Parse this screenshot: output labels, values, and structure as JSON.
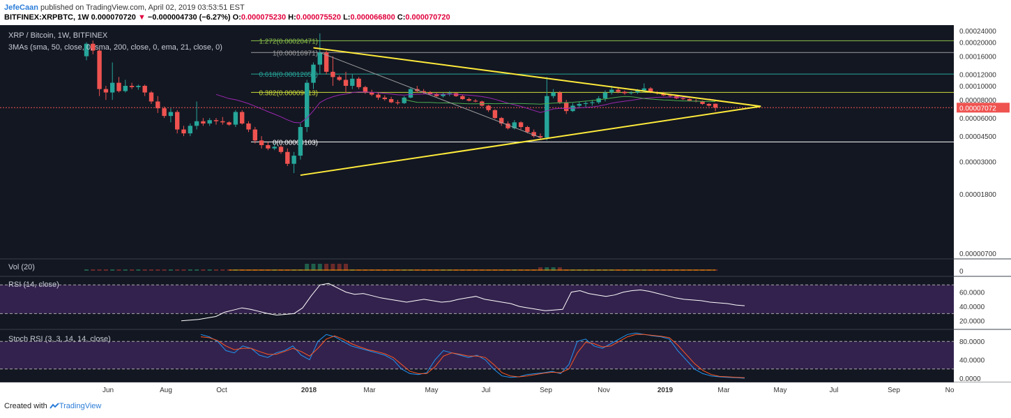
{
  "header": {
    "author": "JefeCaan",
    "published_text": " published on TradingView.com, April 02, 2019 03:53:51 EST",
    "symbol_line": "BITFINEX:XRPBTC, 1W 0.000070720",
    "change_arrow": "▼",
    "change_text": "−0.000004730 (−6.27%)",
    "o_label": "O:",
    "o_value": "0.000075230",
    "h_label": "H:",
    "h_value": "0.000075520",
    "l_label": "L:",
    "l_value": "0.000066800",
    "c_label": "C:",
    "c_value": "0.000070720"
  },
  "footer": {
    "created_with": "Created with ",
    "brand": "TradingView"
  },
  "colors": {
    "up": "#26a69a",
    "down": "#ef5350",
    "bg": "#131722",
    "trend": "#ffeb3b",
    "ma_green": "#4caf50",
    "ma_purple": "#9c27b0",
    "rsi_band": "#4a2a6b"
  },
  "chart_data": [
    {
      "type": "candlestick",
      "title": "XRP / Bitcoin, 1W, BITFINEX",
      "indicator_label": "3MAs (sma, 50, close, 0, sma, 200, close, 0, ema, 21, close, 0)",
      "x_ticks": [
        "Jun",
        "Aug",
        "Oct",
        "2018",
        "Mar",
        "May",
        "Jul",
        "Sep",
        "Nov",
        "2019",
        "Mar",
        "May",
        "Jul",
        "Sep",
        "No"
      ],
      "y_ticks": [
        "0.00024000",
        "0.00020000",
        "0.00016000",
        "0.00012000",
        "0.00010000",
        "0.00008000",
        "0.00007072",
        "0.00006000",
        "0.00004500",
        "0.00003000",
        "0.00001800",
        "0.00000700"
      ],
      "current_price_label": "0.00007072",
      "fib_levels": [
        {
          "label": "1.272(0.00020471)",
          "value": 0.00020471,
          "color": "#8bc34a"
        },
        {
          "label": "1(0.00016971)",
          "value": 0.00016971,
          "color": "#9e9e9e"
        },
        {
          "label": "0.618(0.00012051)",
          "value": 0.00012051,
          "color": "#26a69a"
        },
        {
          "label": "0.382(0.00009013)",
          "value": 9.013e-05,
          "color": "#cddc39"
        },
        {
          "label": "0(0.00004103)",
          "value": 4.103e-05,
          "color": "#ffffff"
        }
      ],
      "candles": [
        [
          0.00016,
          0.0002,
          0.00015,
          0.000195
        ],
        [
          0.000195,
          0.000205,
          0.000165,
          0.000175
        ],
        [
          0.000175,
          0.00018,
          8.5e-05,
          9.5e-05
        ],
        [
          9.5e-05,
          0.0001,
          8e-05,
          9e-05
        ],
        [
          9e-05,
          0.000145,
          8e-05,
          0.000105
        ],
        [
          0.000105,
          0.000115,
          9e-05,
          9.2e-05
        ],
        [
          9.2e-05,
          0.00011,
          9e-05,
          0.0001
        ],
        [
          0.0001,
          0.000105,
          9.5e-05,
          9.8e-05
        ],
        [
          9.8e-05,
          0.000102,
          9.4e-05,
          0.0001
        ],
        [
          0.0001,
          0.000102,
          8.5e-05,
          9e-05
        ],
        [
          9e-05,
          9.2e-05,
          7.5e-05,
          7.8e-05
        ],
        [
          7.8e-05,
          8.5e-05,
          6.5e-05,
          7e-05
        ],
        [
          7e-05,
          7.2e-05,
          6e-05,
          6.2e-05
        ],
        [
          6.2e-05,
          7e-05,
          5.6e-05,
          6.6e-05
        ],
        [
          6.6e-05,
          6.8e-05,
          4.7e-05,
          5e-05
        ],
        [
          5e-05,
          5.3e-05,
          4.5e-05,
          4.7e-05
        ],
        [
          4.7e-05,
          5.5e-05,
          4.5e-05,
          5.3e-05
        ],
        [
          5.3e-05,
          7.8e-05,
          5e-05,
          5.7e-05
        ],
        [
          5.7e-05,
          6e-05,
          5.3e-05,
          5.5e-05
        ],
        [
          5.5e-05,
          6e-05,
          5.3e-05,
          5.8e-05
        ],
        [
          5.8e-05,
          6e-05,
          5.4e-05,
          5.7e-05
        ],
        [
          5.7e-05,
          6.1e-05,
          5.4e-05,
          5.6e-05
        ],
        [
          5.6e-05,
          5.7e-05,
          5.3e-05,
          5.4e-05
        ],
        [
          5.4e-05,
          6.8e-05,
          5.2e-05,
          6.6e-05
        ],
        [
          6.6e-05,
          6.8e-05,
          5.4e-05,
          5.5e-05
        ],
        [
          5.5e-05,
          5.7e-05,
          4.8e-05,
          5e-05
        ],
        [
          5e-05,
          5.2e-05,
          4e-05,
          4.2e-05
        ],
        [
          4.2e-05,
          4.5e-05,
          3.7e-05,
          3.9e-05
        ],
        [
          3.9e-05,
          4.1e-05,
          3.6e-05,
          3.7e-05
        ],
        [
          3.7e-05,
          4e-05,
          3.6e-05,
          3.8e-05
        ],
        [
          3.8e-05,
          3.9e-05,
          3.4e-05,
          3.5e-05
        ],
        [
          3.5e-05,
          3.7e-05,
          2.8e-05,
          2.9e-05
        ],
        [
          2.9e-05,
          3.5e-05,
          2.5e-05,
          3.3e-05
        ],
        [
          3.3e-05,
          5.5e-05,
          3.1e-05,
          5.2e-05
        ],
        [
          5.2e-05,
          0.00011,
          4.8e-05,
          0.000105
        ],
        [
          0.000105,
          0.000145,
          9.5e-05,
          0.00014
        ],
        [
          0.00014,
          0.00023,
          0.00012,
          0.00017
        ],
        [
          0.00017,
          0.000175,
          0.00012,
          0.000125
        ],
        [
          0.000125,
          0.00016,
          0.0001,
          0.000115
        ],
        [
          0.000115,
          0.000118,
          0.000108,
          0.00011
        ],
        [
          0.00011,
          0.000125,
          9e-05,
          0.0001
        ],
        [
          0.0001,
          0.00012,
          9.5e-05,
          0.000112
        ],
        [
          0.000112,
          0.000115,
          9.5e-05,
          9.8e-05
        ],
        [
          9.8e-05,
          0.0001,
          8.8e-05,
          9e-05
        ],
        [
          9e-05,
          9.4e-05,
          8.5e-05,
          8.7e-05
        ],
        [
          8.7e-05,
          9e-05,
          8e-05,
          8.3e-05
        ],
        [
          8.3e-05,
          8.6e-05,
          7.9e-05,
          8.1e-05
        ],
        [
          8.1e-05,
          8.4e-05,
          7.6e-05,
          7.7e-05
        ],
        [
          7.7e-05,
          8e-05,
          7.4e-05,
          7.6e-05
        ],
        [
          7.6e-05,
          8.5e-05,
          7.5e-05,
          8.3e-05
        ],
        [
          8.3e-05,
          9.8e-05,
          8.2e-05,
          9.5e-05
        ],
        [
          9.5e-05,
          0.0001,
          9e-05,
          9.2e-05
        ],
        [
          9.2e-05,
          9.5e-05,
          8.8e-05,
          9e-05
        ],
        [
          9e-05,
          9.2e-05,
          8.6e-05,
          8.8e-05
        ],
        [
          8.8e-05,
          9e-05,
          8.4e-05,
          8.5e-05
        ],
        [
          8.5e-05,
          9e-05,
          8.3e-05,
          8.8e-05
        ],
        [
          8.8e-05,
          9.2e-05,
          8.5e-05,
          8.9e-05
        ],
        [
          8.9e-05,
          9e-05,
          8.4e-05,
          8.5e-05
        ],
        [
          8.5e-05,
          8.7e-05,
          8e-05,
          8.1e-05
        ],
        [
          8.1e-05,
          8.3e-05,
          7.8e-05,
          7.9e-05
        ],
        [
          7.9e-05,
          8.1e-05,
          7.7e-05,
          7.8e-05
        ],
        [
          7.8e-05,
          7.9e-05,
          7.2e-05,
          7.3e-05
        ],
        [
          7.3e-05,
          7.4e-05,
          6.6e-05,
          6.8e-05
        ],
        [
          6.8e-05,
          6.9e-05,
          5.9e-05,
          6e-05
        ],
        [
          6e-05,
          6.1e-05,
          5.3e-05,
          5.5e-05
        ],
        [
          5.5e-05,
          5.7e-05,
          5e-05,
          5.1e-05
        ],
        [
          5.1e-05,
          5.8e-05,
          5e-05,
          5.6e-05
        ],
        [
          5.6e-05,
          5.7e-05,
          5e-05,
          5.2e-05
        ],
        [
          5.2e-05,
          5.3e-05,
          4.7e-05,
          4.8e-05
        ],
        [
          4.8e-05,
          5e-05,
          4.4e-05,
          4.5e-05
        ],
        [
          4.5e-05,
          4.7e-05,
          4.3e-05,
          4.4e-05
        ],
        [
          4.4e-05,
          0.000115,
          4.2e-05,
          8.5e-05
        ],
        [
          8.5e-05,
          9.5e-05,
          8.2e-05,
          9e-05
        ],
        [
          9e-05,
          9.2e-05,
          7.5e-05,
          7.7e-05
        ],
        [
          7.7e-05,
          8e-05,
          6.4e-05,
          6.7e-05
        ],
        [
          6.7e-05,
          7.6e-05,
          6.6e-05,
          7.3e-05
        ],
        [
          7.3e-05,
          7.8e-05,
          7e-05,
          7.5e-05
        ],
        [
          7.5e-05,
          7.8e-05,
          7.1e-05,
          7.6e-05
        ],
        [
          7.6e-05,
          8e-05,
          7.3e-05,
          7.7e-05
        ],
        [
          7.7e-05,
          8.5e-05,
          7.5e-05,
          8.2e-05
        ],
        [
          8.2e-05,
          9.3e-05,
          7.8e-05,
          9e-05
        ],
        [
          9e-05,
          0.0001,
          8.7e-05,
          9.4e-05
        ],
        [
          9.4e-05,
          9.8e-05,
          8.9e-05,
          9.1e-05
        ],
        [
          9.1e-05,
          9.3e-05,
          8.7e-05,
          8.9e-05
        ],
        [
          8.9e-05,
          9.2e-05,
          8.7e-05,
          9e-05
        ],
        [
          9e-05,
          9.5e-05,
          8.8e-05,
          9.3e-05
        ],
        [
          9.3e-05,
          0.000104,
          9e-05,
          9.6e-05
        ],
        [
          9.6e-05,
          9.8e-05,
          8.9e-05,
          9e-05
        ],
        [
          9e-05,
          9.2e-05,
          8.7e-05,
          8.9e-05
        ],
        [
          8.9e-05,
          9.1e-05,
          8.5e-05,
          8.6e-05
        ],
        [
          8.6e-05,
          8.8e-05,
          8.3e-05,
          8.5e-05
        ],
        [
          8.5e-05,
          8.7e-05,
          8.1e-05,
          8.2e-05
        ],
        [
          8.2e-05,
          8.4e-05,
          8e-05,
          8.1e-05
        ],
        [
          8.1e-05,
          8.2e-05,
          7.8e-05,
          7.9e-05
        ],
        [
          7.9e-05,
          8.1e-05,
          7.7e-05,
          7.8e-05
        ],
        [
          7.8e-05,
          7.9e-05,
          7.4e-05,
          7.5e-05
        ],
        [
          7.5e-05,
          7.6e-05,
          7.2e-05,
          7.3e-05
        ],
        [
          7.523e-05,
          7.552e-05,
          6.68e-05,
          7.072e-05
        ]
      ],
      "trendlines": [
        {
          "from": [
            35,
            0.000183
          ],
          "to": [
            104,
            7.22e-05
          ]
        },
        {
          "from": [
            33,
            2.42e-05
          ],
          "to": [
            104,
            7.22e-05
          ]
        },
        {
          "from": [
            36,
            0.00016971
          ],
          "to": [
            70,
            4.4e-05
          ]
        }
      ]
    },
    {
      "type": "bar",
      "title": "Vol (20)",
      "y_ticks": [
        "0"
      ]
    },
    {
      "type": "line",
      "title": "RSI (14, close)",
      "y_ticks": [
        "60.0000",
        "40.0000",
        "20.0000"
      ],
      "levels": [
        70,
        30
      ],
      "series": [
        {
          "values": [
            20,
            21,
            22,
            24,
            26,
            32,
            35,
            38,
            36,
            33,
            30,
            28,
            29,
            30,
            38,
            55,
            70,
            72,
            66,
            60,
            57,
            58,
            55,
            52,
            50,
            48,
            46,
            48,
            50,
            48,
            46,
            47,
            50,
            52,
            54,
            50,
            48,
            46,
            44,
            40,
            38,
            36,
            34,
            35,
            36,
            60,
            62,
            58,
            56,
            54,
            56,
            60,
            62,
            63,
            61,
            58,
            55,
            52,
            50,
            49,
            48,
            46,
            45,
            44,
            42,
            41
          ]
        }
      ]
    },
    {
      "type": "line",
      "title": "Stoch RSI (3, 3, 14, 14, close)",
      "y_ticks": [
        "80.0000",
        "40.0000",
        "0.0000"
      ],
      "levels": [
        80,
        20
      ],
      "series": [
        {
          "values": [
            95,
            90,
            80,
            60,
            55,
            70,
            65,
            50,
            45,
            55,
            60,
            70,
            50,
            40,
            80,
            95,
            90,
            80,
            70,
            65,
            60,
            55,
            50,
            40,
            20,
            10,
            8,
            12,
            40,
            60,
            55,
            50,
            45,
            50,
            40,
            20,
            5,
            2,
            3,
            8,
            10,
            12,
            15,
            10,
            30,
            80,
            85,
            70,
            65,
            75,
            85,
            95,
            98,
            95,
            92,
            90,
            85,
            60,
            40,
            20,
            10,
            5,
            3,
            2,
            1,
            0
          ]
        },
        {
          "values": [
            90,
            88,
            82,
            70,
            62,
            65,
            65,
            58,
            52,
            52,
            58,
            65,
            58,
            48,
            65,
            85,
            92,
            85,
            75,
            68,
            62,
            58,
            53,
            45,
            30,
            15,
            10,
            10,
            25,
            48,
            55,
            52,
            48,
            48,
            45,
            30,
            12,
            5,
            3,
            5,
            8,
            11,
            13,
            12,
            20,
            55,
            78,
            75,
            68,
            70,
            80,
            90,
            95,
            95,
            93,
            91,
            88,
            72,
            52,
            32,
            17,
            8,
            4,
            3,
            2,
            1
          ]
        }
      ]
    }
  ]
}
